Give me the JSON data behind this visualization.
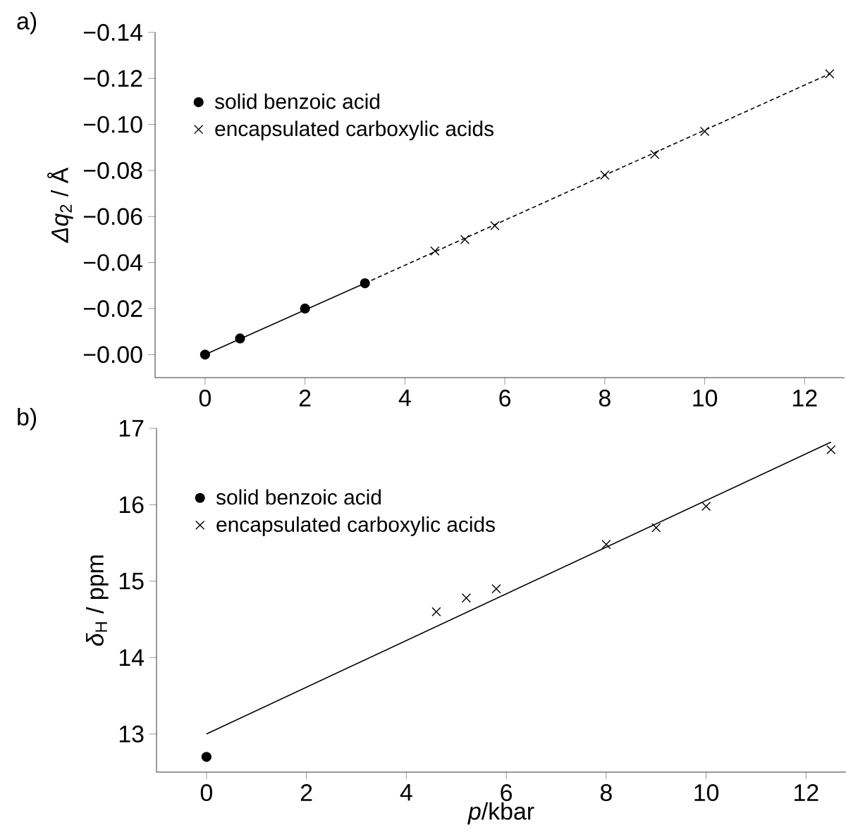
{
  "chart_data": [
    {
      "type": "scatter",
      "ylabel": "*Δq*$_{2}$ / Å",
      "annotations": [
        "a)"
      ],
      "legend": "top left",
      "grid": false,
      "xlim": [
        -1,
        12.8
      ],
      "xticks": [
        0,
        2,
        4,
        6,
        8,
        10,
        12
      ],
      "ylim": [
        0.01,
        -0.14
      ],
      "yticks": [
        {
          "value": -0.14,
          "label": "−0.14"
        },
        {
          "value": -0.12,
          "label": "−0.12"
        },
        {
          "value": -0.1,
          "label": "−0.10"
        },
        {
          "value": -0.08,
          "label": "−0.08"
        },
        {
          "value": -0.06,
          "label": "−0.06"
        },
        {
          "value": -0.04,
          "label": "−0.04"
        },
        {
          "value": -0.02,
          "label": "−0.02"
        },
        {
          "value": 0,
          "label": "−0.00"
        }
      ],
      "series": [
        {
          "name": "solid benzoic acid",
          "color": "#000000",
          "marker": "circle",
          "x": [
            0,
            0.7,
            2,
            3.2
          ],
          "values": [
            0,
            -0.007,
            -0.02,
            -0.031
          ]
        },
        {
          "name": "encapsulated carboxylic acids",
          "color": "#000000",
          "marker": "cross",
          "x": [
            4.6,
            5.2,
            5.8,
            8,
            9,
            10,
            12.5
          ],
          "values": [
            -0.045,
            -0.05,
            -0.056,
            -0.078,
            -0.087,
            -0.097,
            -0.122
          ]
        },
        {
          "type": "line",
          "color": "#000000",
          "line_style": "solid",
          "x": [
            0,
            3.2
          ],
          "values": [
            0,
            -0.031
          ]
        },
        {
          "type": "line",
          "color": "#000000",
          "line_style": "dashed",
          "x": [
            3.2,
            12.5
          ],
          "values": [
            -0.031,
            -0.122
          ]
        }
      ]
    },
    {
      "type": "scatter",
      "xlabel": "*p*/kbar",
      "ylabel": "*δ*$_{H}$ / ppm",
      "annotations": [
        "b)"
      ],
      "legend": "top left",
      "grid": false,
      "xlim": [
        -1,
        12.8
      ],
      "xticks": [
        0,
        2,
        4,
        6,
        8,
        10,
        12
      ],
      "ylim": [
        12.5,
        17
      ],
      "yticks": [
        13,
        14,
        15,
        16,
        17
      ],
      "series": [
        {
          "name": "solid benzoic acid",
          "color": "#000000",
          "marker": "circle",
          "x": [
            0
          ],
          "values": [
            12.7
          ]
        },
        {
          "name": "encapsulated carboxylic acids",
          "color": "#000000",
          "marker": "cross",
          "x": [
            4.6,
            5.2,
            5.8,
            8,
            9,
            10,
            12.5
          ],
          "values": [
            14.6,
            14.78,
            14.9,
            15.48,
            15.7,
            15.98,
            16.72
          ]
        },
        {
          "type": "line",
          "color": "#000000",
          "line_style": "solid",
          "x": [
            0,
            12.5
          ],
          "values": [
            13.0,
            16.82
          ]
        }
      ]
    }
  ]
}
